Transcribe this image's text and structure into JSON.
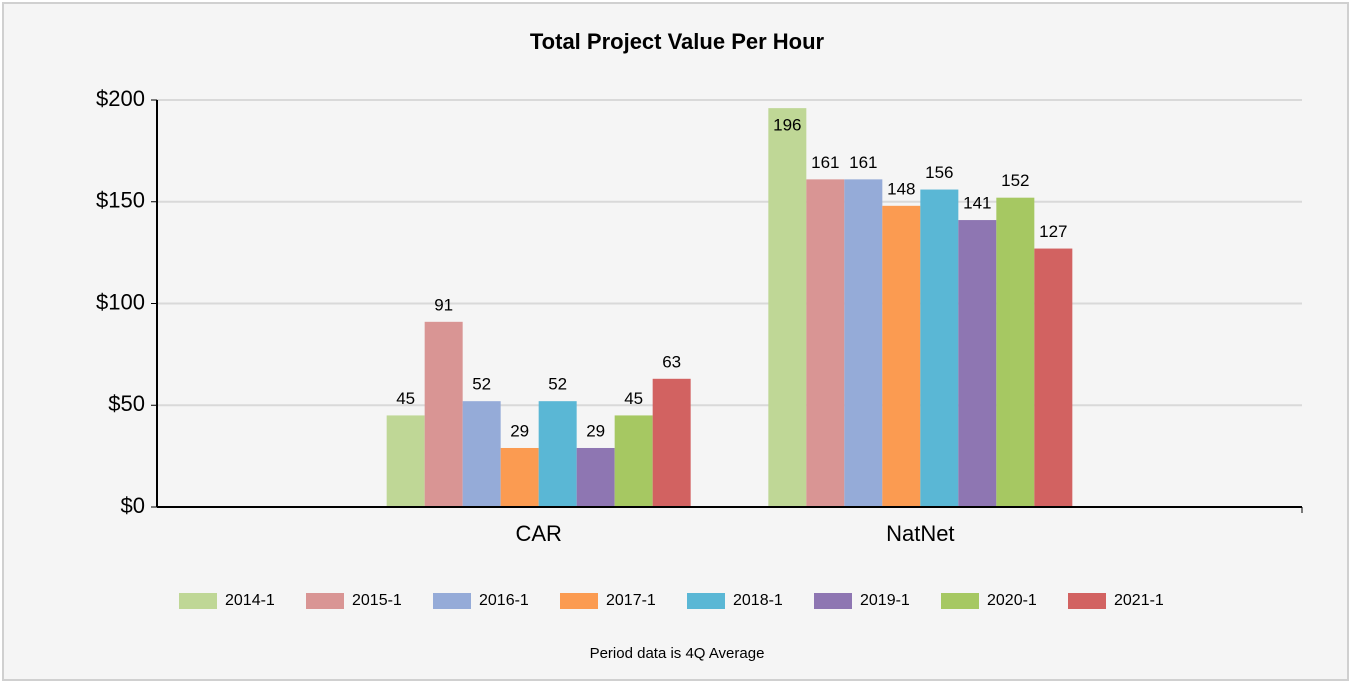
{
  "chart_data": {
    "type": "bar",
    "title": "Total Project Value Per Hour",
    "categories": [
      "CAR",
      "NatNet"
    ],
    "series": [
      {
        "name": "2014-1",
        "color": "#bfd796",
        "values": [
          45,
          196
        ]
      },
      {
        "name": "2015-1",
        "color": "#d99594",
        "values": [
          91,
          161
        ]
      },
      {
        "name": "2016-1",
        "color": "#95abd8",
        "values": [
          52,
          161
        ]
      },
      {
        "name": "2017-1",
        "color": "#fb9b51",
        "values": [
          29,
          148
        ]
      },
      {
        "name": "2018-1",
        "color": "#5ab7d5",
        "values": [
          52,
          156
        ]
      },
      {
        "name": "2019-1",
        "color": "#8e76b2",
        "values": [
          29,
          141
        ]
      },
      {
        "name": "2020-1",
        "color": "#a6c862",
        "values": [
          45,
          152
        ]
      },
      {
        "name": "2021-1",
        "color": "#d26261",
        "values": [
          63,
          127
        ]
      }
    ],
    "ylim": [
      0,
      200
    ],
    "yticks": [
      {
        "value": 0,
        "label": "$0"
      },
      {
        "value": 50,
        "label": "$50"
      },
      {
        "value": 100,
        "label": "$100"
      },
      {
        "value": 150,
        "label": "$150"
      },
      {
        "value": 200,
        "label": "$200"
      }
    ],
    "grid": true,
    "legend": "bottom",
    "note": "Period data is 4Q Average"
  }
}
